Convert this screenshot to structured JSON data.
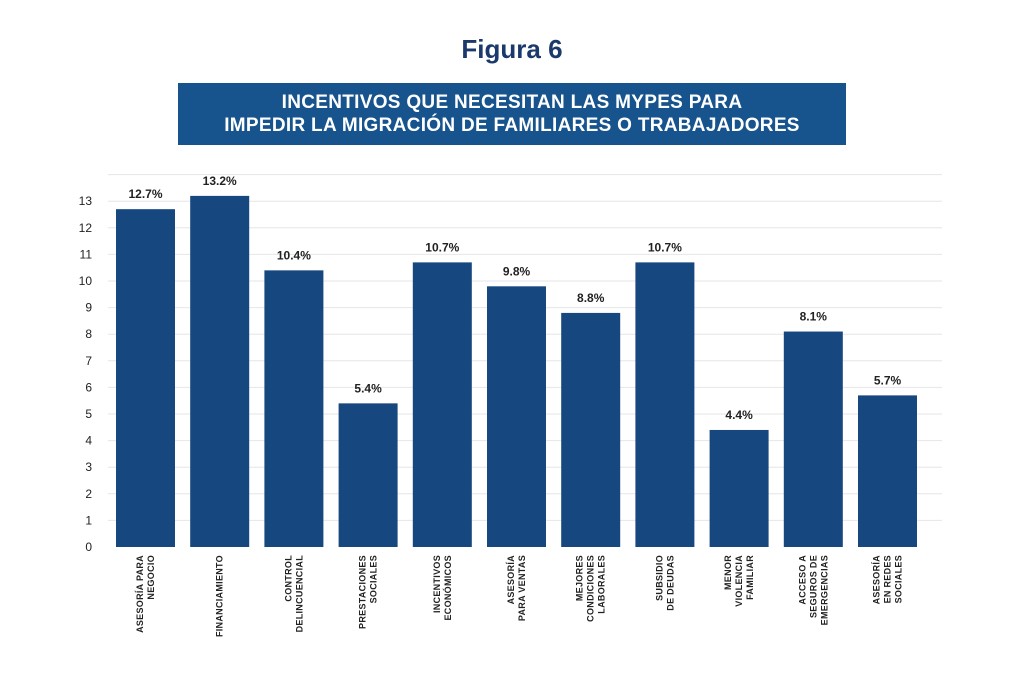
{
  "figure_label": "Figura 6",
  "chart_data": {
    "type": "bar",
    "title_lines": [
      "INCENTIVOS QUE NECESITAN LAS MYPES PARA",
      "IMPEDIR LA MIGRACIÓN DE FAMILIARES O TRABAJADORES"
    ],
    "categories": [
      [
        "ASESORÍA PARA",
        "NEGOCIO"
      ],
      [
        "FINANCIAMIENTO"
      ],
      [
        "CONTROL",
        "DELINCUENCIAL"
      ],
      [
        "PRESTACIONES",
        "SOCIALES"
      ],
      [
        "INCENTIVOS",
        "ECONÓMICOS"
      ],
      [
        "ASESORÍA",
        "PARA VENTAS"
      ],
      [
        "MEJORES",
        "CONDICIONES",
        "LABORALES"
      ],
      [
        "SUBSIDIO",
        "DE DEUDAS"
      ],
      [
        "MENOR",
        "VIOLENCIA",
        "FAMILIAR"
      ],
      [
        "ACCESO A",
        "SEGUROS DE",
        "EMERGENCIAS"
      ],
      [
        "ASESORÍA",
        "EN REDES",
        "SOCIALES"
      ]
    ],
    "values": [
      12.7,
      13.2,
      10.4,
      5.4,
      10.7,
      9.8,
      8.8,
      10.7,
      4.4,
      8.1,
      5.7
    ],
    "data_labels": [
      "12.7%",
      "13.2%",
      "10.4%",
      "5.4%",
      "10.7%",
      "9.8%",
      "8.8%",
      "10.7%",
      "4.4%",
      "8.1%",
      "5.7%"
    ],
    "yticks": [
      0,
      1,
      2,
      3,
      4,
      5,
      6,
      7,
      8,
      9,
      10,
      11,
      12,
      13
    ],
    "ylim": [
      0,
      14
    ],
    "grid": true,
    "bar_color": "#17477f"
  }
}
